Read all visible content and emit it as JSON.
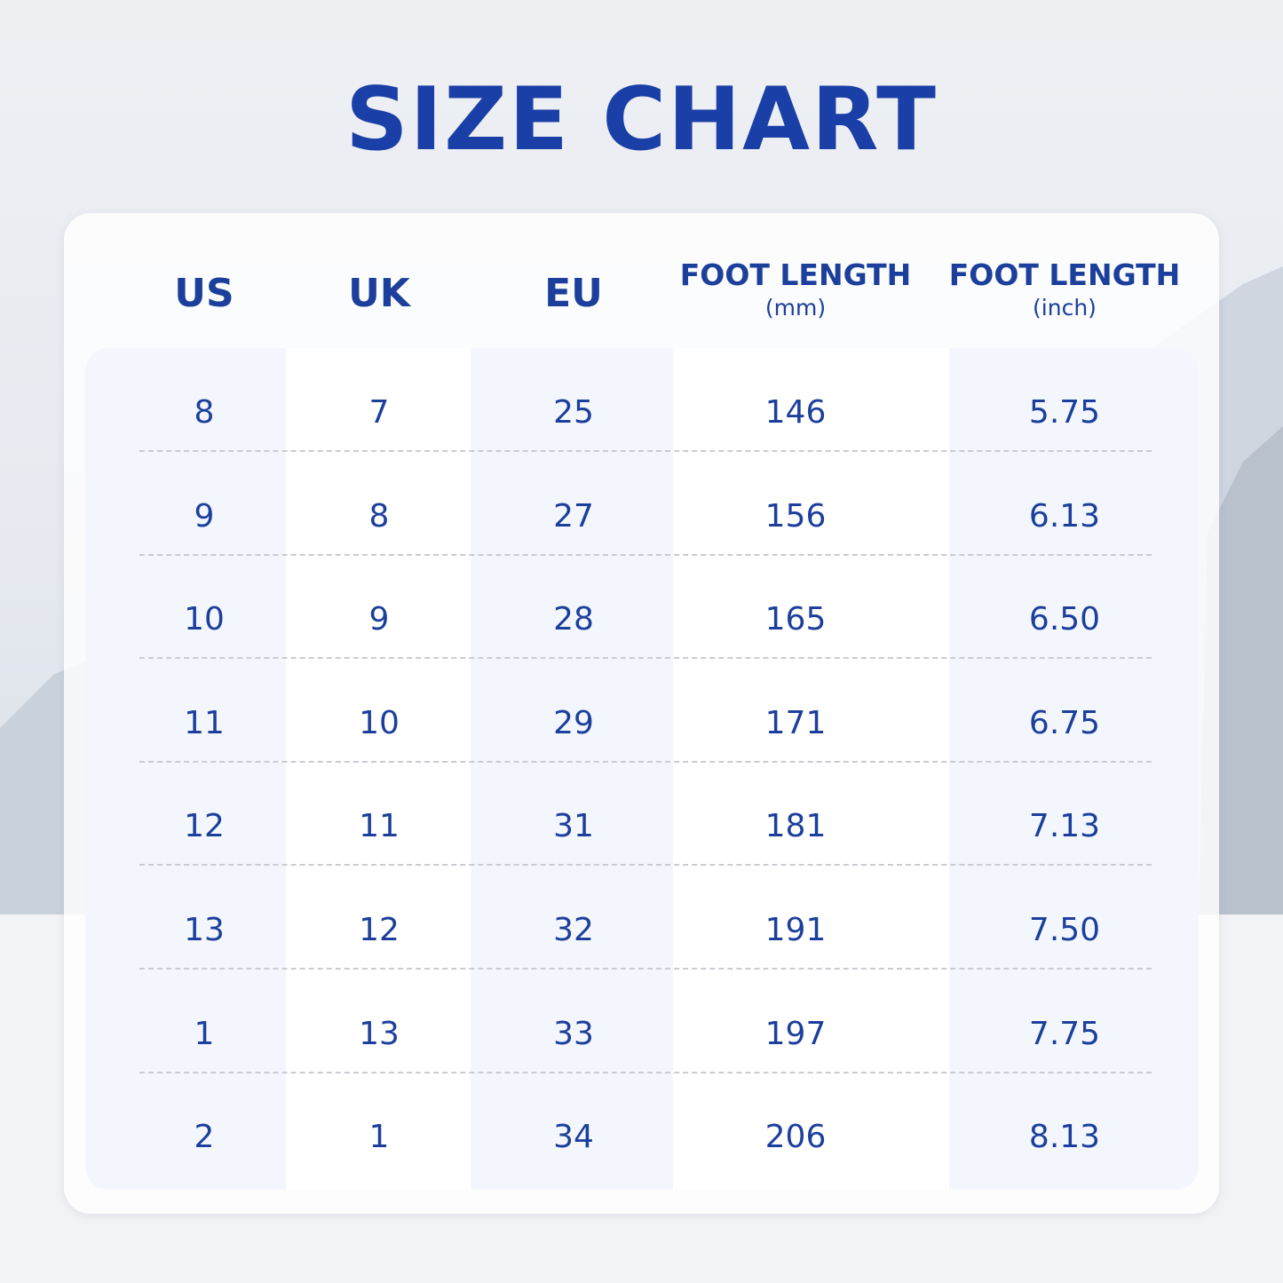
{
  "title": "SIZE CHART",
  "table": {
    "headers": [
      {
        "label": "US"
      },
      {
        "label": "UK"
      },
      {
        "label": "EU"
      },
      {
        "label": "FOOT LENGTH",
        "unit": "(mm)"
      },
      {
        "label": "FOOT LENGTH",
        "unit": "(inch)"
      }
    ],
    "rows": [
      [
        "8",
        "7",
        "25",
        "146",
        "5.75"
      ],
      [
        "9",
        "8",
        "27",
        "156",
        "6.13"
      ],
      [
        "10",
        "9",
        "28",
        "165",
        "6.50"
      ],
      [
        "11",
        "10",
        "29",
        "171",
        "6.75"
      ],
      [
        "12",
        "11",
        "31",
        "181",
        "7.13"
      ],
      [
        "13",
        "12",
        "32",
        "191",
        "7.50"
      ],
      [
        "1",
        "13",
        "33",
        "197",
        "7.75"
      ],
      [
        "2",
        "1",
        "34",
        "206",
        "8.13"
      ]
    ]
  }
}
